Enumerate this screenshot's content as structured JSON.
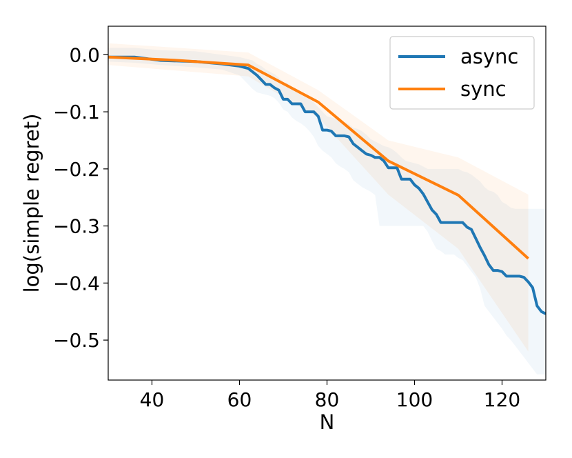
{
  "chart_data": {
    "type": "line",
    "title": "",
    "xlabel": "N",
    "ylabel": "log(simple regret)",
    "xlim": [
      30,
      130
    ],
    "ylim": [
      -0.57,
      0.05
    ],
    "xticks": [
      40,
      60,
      80,
      100,
      120
    ],
    "xtick_labels": [
      "40",
      "60",
      "80",
      "100",
      "120"
    ],
    "yticks": [
      0.0,
      -0.1,
      -0.2,
      -0.3,
      -0.4,
      -0.5
    ],
    "ytick_labels": [
      "0.0",
      "−0.1",
      "−0.2",
      "−0.3",
      "−0.4",
      "−0.5"
    ],
    "grid": false,
    "legend_position": "top-right",
    "series": [
      {
        "name": "async",
        "color": "#1f77b4",
        "band_opacity": 0.06,
        "x": [
          30,
          36,
          42,
          50,
          56,
          60,
          62,
          63,
          64,
          65,
          66,
          67,
          68,
          69,
          70,
          71,
          72,
          73,
          74,
          75,
          76,
          77,
          78,
          79,
          80,
          81,
          82,
          83,
          84,
          85,
          86,
          87,
          88,
          89,
          90,
          91,
          92,
          93,
          94,
          95,
          96,
          97,
          98,
          99,
          100,
          101,
          102,
          103,
          104,
          105,
          106,
          107,
          108,
          109,
          110,
          111,
          112,
          113,
          114,
          115,
          116,
          117,
          118,
          119,
          120,
          121,
          122,
          123,
          124,
          125,
          126,
          127,
          128,
          129,
          130
        ],
        "y": [
          -0.004,
          -0.004,
          -0.01,
          -0.012,
          -0.016,
          -0.02,
          -0.024,
          -0.03,
          -0.036,
          -0.044,
          -0.052,
          -0.052,
          -0.058,
          -0.062,
          -0.078,
          -0.078,
          -0.086,
          -0.086,
          -0.086,
          -0.1,
          -0.1,
          -0.1,
          -0.108,
          -0.132,
          -0.132,
          -0.134,
          -0.142,
          -0.142,
          -0.142,
          -0.144,
          -0.156,
          -0.162,
          -0.168,
          -0.174,
          -0.176,
          -0.18,
          -0.18,
          -0.186,
          -0.198,
          -0.198,
          -0.198,
          -0.218,
          -0.218,
          -0.218,
          -0.228,
          -0.234,
          -0.244,
          -0.258,
          -0.272,
          -0.28,
          -0.294,
          -0.294,
          -0.294,
          -0.294,
          -0.294,
          -0.294,
          -0.302,
          -0.306,
          -0.322,
          -0.338,
          -0.352,
          -0.368,
          -0.378,
          -0.378,
          -0.38,
          -0.388,
          -0.388,
          -0.388,
          -0.388,
          -0.39,
          -0.398,
          -0.408,
          -0.44,
          -0.45,
          -0.454
        ],
        "upper": [
          0.012,
          0.012,
          0.008,
          0.006,
          0.0,
          -0.004,
          -0.008,
          -0.01,
          -0.016,
          -0.02,
          -0.026,
          -0.03,
          -0.034,
          -0.04,
          -0.048,
          -0.05,
          -0.056,
          -0.062,
          -0.066,
          -0.072,
          -0.078,
          -0.084,
          -0.092,
          -0.1,
          -0.108,
          -0.11,
          -0.112,
          -0.114,
          -0.118,
          -0.122,
          -0.128,
          -0.13,
          -0.134,
          -0.14,
          -0.148,
          -0.152,
          -0.156,
          -0.16,
          -0.162,
          -0.166,
          -0.172,
          -0.18,
          -0.186,
          -0.188,
          -0.19,
          -0.192,
          -0.196,
          -0.2,
          -0.2,
          -0.2,
          -0.2,
          -0.2,
          -0.2,
          -0.2,
          -0.2,
          -0.204,
          -0.206,
          -0.21,
          -0.216,
          -0.222,
          -0.232,
          -0.238,
          -0.24,
          -0.246,
          -0.258,
          -0.262,
          -0.268,
          -0.27,
          -0.27,
          -0.27,
          -0.27,
          -0.27,
          -0.27,
          -0.27,
          -0.27
        ],
        "lower": [
          -0.012,
          -0.014,
          -0.018,
          -0.022,
          -0.026,
          -0.036,
          -0.052,
          -0.06,
          -0.066,
          -0.068,
          -0.07,
          -0.072,
          -0.076,
          -0.084,
          -0.096,
          -0.1,
          -0.11,
          -0.116,
          -0.12,
          -0.126,
          -0.134,
          -0.144,
          -0.16,
          -0.168,
          -0.174,
          -0.18,
          -0.19,
          -0.196,
          -0.2,
          -0.206,
          -0.22,
          -0.226,
          -0.232,
          -0.236,
          -0.24,
          -0.246,
          -0.3,
          -0.3,
          -0.3,
          -0.3,
          -0.3,
          -0.3,
          -0.3,
          -0.3,
          -0.3,
          -0.3,
          -0.3,
          -0.31,
          -0.326,
          -0.34,
          -0.344,
          -0.35,
          -0.35,
          -0.35,
          -0.356,
          -0.36,
          -0.37,
          -0.38,
          -0.39,
          -0.41,
          -0.44,
          -0.45,
          -0.46,
          -0.47,
          -0.48,
          -0.492,
          -0.5,
          -0.51,
          -0.52,
          -0.53,
          -0.54,
          -0.55,
          -0.56,
          -0.56,
          -0.56
        ]
      },
      {
        "name": "sync",
        "color": "#ff7f0e",
        "band_opacity": 0.07,
        "x": [
          30,
          46,
          62,
          78,
          94,
          110,
          126
        ],
        "y": [
          -0.004,
          -0.01,
          -0.018,
          -0.083,
          -0.186,
          -0.246,
          -0.357
        ],
        "upper": [
          0.02,
          0.012,
          0.004,
          -0.062,
          -0.15,
          -0.18,
          -0.245
        ],
        "lower": [
          -0.018,
          -0.028,
          -0.038,
          -0.11,
          -0.245,
          -0.34,
          -0.52
        ]
      }
    ]
  }
}
